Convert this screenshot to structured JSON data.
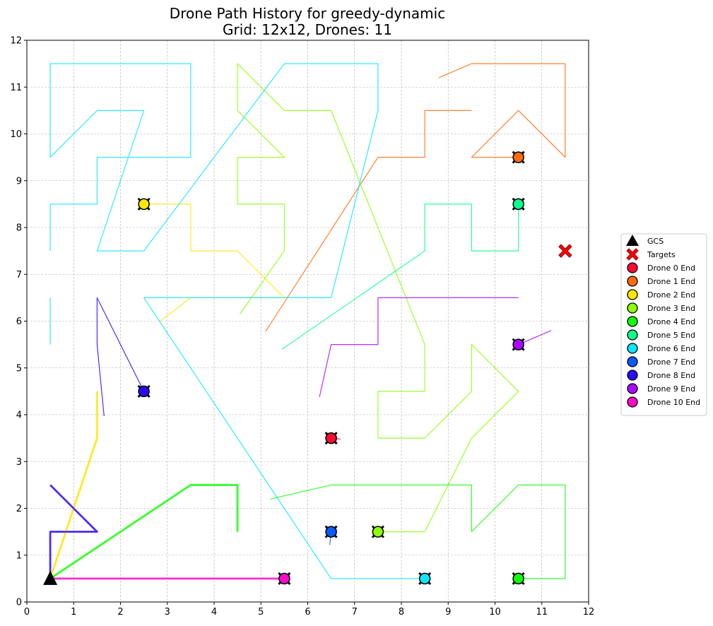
{
  "chart_data": {
    "type": "line",
    "title": "Drone Path History for greedy-dynamic",
    "subtitle": "Grid: 12x12, Drones: 11",
    "xlabel": "",
    "ylabel": "",
    "xlim": [
      0,
      12
    ],
    "ylim": [
      0,
      12
    ],
    "x_ticks": [
      "0",
      "1",
      "2",
      "3",
      "4",
      "5",
      "6",
      "7",
      "8",
      "9",
      "10",
      "11",
      "12"
    ],
    "y_ticks": [
      "0",
      "1",
      "2",
      "3",
      "4",
      "5",
      "6",
      "7",
      "8",
      "9",
      "10",
      "11",
      "12"
    ],
    "grid": true,
    "legend_position": "right",
    "gcs": {
      "label": "GCS",
      "x": 0.5,
      "y": 0.5,
      "color": "#000000"
    },
    "targets": {
      "label": "Targets",
      "color": "#ff0000",
      "points": [
        [
          11.5,
          7.5
        ]
      ]
    },
    "series": [
      {
        "name": "Drone 0 End",
        "color": "#ff0a33",
        "end": [
          6.5,
          3.5
        ],
        "width": 1.2,
        "path": [
          [
            6.5,
            3.5
          ],
          [
            6.7,
            3.48
          ]
        ]
      },
      {
        "name": "Drone 1 End",
        "color": "#ff6a0e",
        "end": [
          10.5,
          9.5
        ],
        "width": 1.2,
        "path": [
          [
            5.1,
            5.78
          ],
          [
            7.5,
            9.5
          ],
          [
            8.5,
            9.5
          ],
          [
            8.5,
            10.5
          ],
          [
            9.5,
            10.5
          ],
          [
            null,
            null
          ],
          [
            8.8,
            11.2
          ],
          [
            9.5,
            11.5
          ],
          [
            11.5,
            11.5
          ],
          [
            11.5,
            9.5
          ],
          [
            10.5,
            10.5
          ],
          [
            9.5,
            9.5
          ],
          [
            10.5,
            9.5
          ]
        ]
      },
      {
        "name": "Drone 2 End",
        "color": "#ffe600",
        "end": [
          2.5,
          8.5
        ],
        "width": 1.2,
        "path": [
          [
            1.5,
            4.5
          ],
          [
            1.5,
            3.5
          ],
          [
            0.5,
            0.5
          ],
          [
            null,
            null
          ],
          [
            2.85,
            6.0
          ],
          [
            3.5,
            6.5
          ],
          [
            5.5,
            6.5
          ],
          [
            4.5,
            7.5
          ],
          [
            3.5,
            7.5
          ],
          [
            3.5,
            8.5
          ],
          [
            2.5,
            8.5
          ]
        ]
      },
      {
        "name": "Drone 3 End",
        "color": "#8cff0a",
        "end": [
          7.5,
          1.5
        ],
        "width": 1.2,
        "path": [
          [
            4.55,
            6.15
          ],
          [
            5.5,
            7.5
          ],
          [
            5.5,
            8.5
          ],
          [
            4.5,
            8.5
          ],
          [
            4.5,
            9.5
          ],
          [
            5.5,
            9.5
          ],
          [
            4.5,
            10.5
          ],
          [
            4.5,
            11.5
          ],
          [
            5.5,
            10.5
          ],
          [
            6.5,
            10.5
          ],
          [
            8.5,
            5.5
          ],
          [
            8.5,
            4.5
          ],
          [
            7.5,
            4.5
          ],
          [
            7.5,
            3.5
          ],
          [
            8.5,
            3.5
          ],
          [
            9.5,
            4.5
          ],
          [
            9.5,
            5.5
          ],
          [
            10.5,
            4.5
          ],
          [
            9.5,
            3.5
          ],
          [
            8.5,
            1.5
          ],
          [
            7.5,
            1.5
          ]
        ]
      },
      {
        "name": "Drone 4 End",
        "color": "#12ff0a",
        "end": [
          10.5,
          0.5
        ],
        "width": 1.2,
        "path": [
          [
            4.5,
            1.5
          ],
          [
            4.5,
            2.5
          ],
          [
            3.5,
            2.5
          ],
          [
            0.5,
            0.5
          ],
          [
            null,
            null
          ],
          [
            5.2,
            2.2
          ],
          [
            6.5,
            2.5
          ],
          [
            9.5,
            2.5
          ],
          [
            9.5,
            1.5
          ],
          [
            10.5,
            2.5
          ],
          [
            11.5,
            2.5
          ],
          [
            11.5,
            0.5
          ],
          [
            10.5,
            0.5
          ]
        ]
      },
      {
        "name": "Drone 5 End",
        "color": "#0aff8c",
        "end": [
          10.5,
          8.5
        ],
        "width": 1.2,
        "path": [
          [
            5.45,
            5.4
          ],
          [
            8.5,
            7.5
          ],
          [
            8.5,
            8.5
          ],
          [
            9.5,
            8.5
          ],
          [
            9.5,
            7.5
          ],
          [
            10.5,
            7.5
          ],
          [
            10.5,
            8.5
          ]
        ]
      },
      {
        "name": "Drone 6 End",
        "color": "#0ae6ff",
        "end": [
          8.5,
          0.5
        ],
        "width": 1.2,
        "path": [
          [
            0.5,
            6.5
          ],
          [
            0.5,
            5.5
          ],
          [
            null,
            null
          ],
          [
            0.5,
            7.5
          ],
          [
            0.5,
            8.5
          ],
          [
            1.5,
            8.5
          ],
          [
            1.5,
            9.5
          ],
          [
            3.5,
            9.5
          ],
          [
            3.5,
            11.5
          ],
          [
            0.5,
            11.5
          ],
          [
            0.5,
            9.5
          ],
          [
            1.5,
            10.5
          ],
          [
            2.5,
            10.5
          ],
          [
            1.5,
            7.5
          ],
          [
            2.5,
            7.5
          ],
          [
            5.5,
            11.5
          ],
          [
            7.5,
            11.5
          ],
          [
            7.5,
            10.5
          ],
          [
            6.5,
            6.5
          ],
          [
            2.5,
            6.5
          ],
          [
            6.5,
            0.5
          ],
          [
            8.5,
            0.5
          ]
        ]
      },
      {
        "name": "Drone 7 End",
        "color": "#0a5aff",
        "end": [
          6.5,
          1.5
        ],
        "width": 1.2,
        "path": [
          [
            6.5,
            1.5
          ],
          [
            6.47,
            1.22
          ]
        ]
      },
      {
        "name": "Drone 8 End",
        "color": "#2b0aff",
        "end": [
          2.5,
          4.5
        ],
        "width": 1.2,
        "path": [
          [
            1.65,
            3.97
          ],
          [
            1.5,
            5.5
          ],
          [
            1.5,
            6.5
          ],
          [
            2.5,
            4.5
          ],
          [
            null,
            null
          ],
          [
            0.5,
            2.5
          ],
          [
            1.5,
            1.5
          ],
          [
            0.5,
            1.5
          ],
          [
            0.5,
            0.5
          ]
        ]
      },
      {
        "name": "Drone 9 End",
        "color": "#aa0aff",
        "end": [
          10.5,
          5.5
        ],
        "width": 1.2,
        "path": [
          [
            6.25,
            4.38
          ],
          [
            6.5,
            5.5
          ],
          [
            7.5,
            5.5
          ],
          [
            7.5,
            6.5
          ],
          [
            10.5,
            6.5
          ],
          [
            null,
            null
          ],
          [
            11.2,
            5.8
          ],
          [
            10.5,
            5.5
          ]
        ]
      },
      {
        "name": "Drone 10 End",
        "color": "#ff0ac8",
        "end": [
          5.5,
          0.5
        ],
        "width": 1.2,
        "path": [
          [
            0.5,
            0.5
          ],
          [
            5.5,
            0.5
          ]
        ]
      }
    ],
    "thick_segments": [
      {
        "color": "#ffe600",
        "path": [
          [
            1.5,
            4.5
          ],
          [
            1.5,
            3.5
          ],
          [
            0.5,
            0.5
          ]
        ]
      },
      {
        "color": "#12ff0a",
        "path": [
          [
            4.5,
            1.5
          ],
          [
            4.5,
            2.5
          ],
          [
            3.5,
            2.5
          ],
          [
            0.5,
            0.5
          ]
        ]
      },
      {
        "color": "#2b0aff",
        "path": [
          [
            0.5,
            2.5
          ],
          [
            1.5,
            1.5
          ],
          [
            0.5,
            1.5
          ],
          [
            0.5,
            0.5
          ]
        ]
      },
      {
        "color": "#ff0ac8",
        "path": [
          [
            0.5,
            0.5
          ],
          [
            5.5,
            0.5
          ]
        ]
      }
    ]
  }
}
